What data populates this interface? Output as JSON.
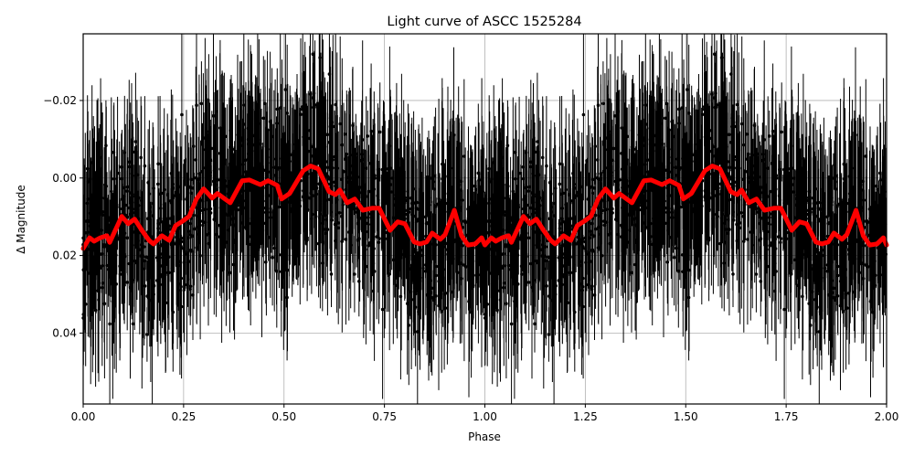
{
  "chart_data": {
    "type": "scatter",
    "title": "Light curve of ASCC 1525284",
    "xlabel": "Phase",
    "ylabel": "Δ Magnitude",
    "xlim": [
      0.0,
      2.0
    ],
    "ylim": [
      0.0583,
      -0.0372
    ],
    "y_inverted": true,
    "grid": true,
    "legend": null,
    "xticks": [
      0.0,
      0.25,
      0.5,
      0.75,
      1.0,
      1.25,
      1.5,
      1.75,
      2.0
    ],
    "xtick_labels": [
      "0.00",
      "0.25",
      "0.50",
      "0.75",
      "1.00",
      "1.25",
      "1.50",
      "1.75",
      "2.00"
    ],
    "yticks": [
      -0.02,
      0.0,
      0.02,
      0.04
    ],
    "ytick_labels": [
      "−0.02",
      "0.00",
      "0.02",
      "0.04"
    ],
    "series": [
      {
        "name": "observations",
        "style": "black points with vertical error bars",
        "color": "#000000",
        "description": "Dense phase-folded photometry, scatter roughly ±0.03 mag around the smoothed curve, error bars ~0.01–0.03 mag"
      },
      {
        "name": "binned/smoothed curve",
        "style": "thick red line",
        "color": "#ff0000",
        "x": [
          0.0,
          0.016,
          0.027,
          0.043,
          0.059,
          0.066,
          0.096,
          0.112,
          0.128,
          0.146,
          0.164,
          0.175,
          0.196,
          0.214,
          0.23,
          0.248,
          0.264,
          0.282,
          0.3,
          0.321,
          0.334,
          0.366,
          0.396,
          0.414,
          0.441,
          0.46,
          0.483,
          0.494,
          0.514,
          0.548,
          0.566,
          0.585,
          0.612,
          0.628,
          0.639,
          0.657,
          0.676,
          0.696,
          0.719,
          0.737,
          0.764,
          0.783,
          0.801,
          0.824,
          0.839,
          0.855,
          0.869,
          0.889,
          0.901,
          0.924,
          0.942,
          0.958,
          0.976,
          0.992,
          1.0
        ],
        "y": [
          0.0182,
          0.0154,
          0.0163,
          0.0154,
          0.0149,
          0.0166,
          0.0099,
          0.0118,
          0.0106,
          0.0135,
          0.0161,
          0.017,
          0.0149,
          0.0161,
          0.0123,
          0.0111,
          0.0099,
          0.0054,
          0.0028,
          0.0052,
          0.004,
          0.0064,
          0.0007,
          0.0005,
          0.0017,
          0.0007,
          0.0019,
          0.0054,
          0.004,
          -0.0019,
          -0.0031,
          -0.0024,
          0.0035,
          0.0043,
          0.0031,
          0.0064,
          0.0054,
          0.0083,
          0.0078,
          0.0078,
          0.0135,
          0.0113,
          0.0118,
          0.0165,
          0.017,
          0.0165,
          0.0142,
          0.0158,
          0.0146,
          0.0083,
          0.0149,
          0.0173,
          0.017,
          0.0154,
          0.0173
        ]
      }
    ],
    "period_repeat": "Second half (phase 1.0–2.0) repeats the first half"
  }
}
